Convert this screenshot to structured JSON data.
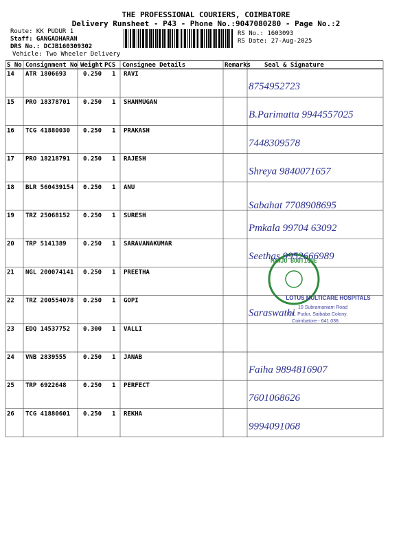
{
  "header": {
    "title": "THE PROFESSIONAL COURIERS, COIMBATORE",
    "subtitle": "Delivery Runsheet - P43 - Phone No.:9047080280 - Page No.:2",
    "route": "Route: KK PUDUR 1",
    "staff": "Staff: GANGADHARAN",
    "drs": "DRS No.: DCJB160309302",
    "vehicle": "Vehicle: Two Wheeler Delivery",
    "rs_no": "RS No.: 1603093",
    "rs_date": "RS Date: 27-Aug-2025"
  },
  "table": {
    "columns": [
      "S No",
      "Consignment No",
      "Weight",
      "PCS",
      "Consignee Details",
      "Remarks",
      "Seal & Signature"
    ],
    "rows": [
      [
        "14",
        "ATR 1806693",
        "0.250",
        "1",
        "RAVI"
      ],
      [
        "15",
        "PRO 18378701",
        "0.250",
        "1",
        "SHANMUGAN"
      ],
      [
        "16",
        "TCG 41880030",
        "0.250",
        "1",
        "PRAKASH"
      ],
      [
        "17",
        "PRO 18218791",
        "0.250",
        "1",
        "RAJESH"
      ],
      [
        "18",
        "BLR 560439154",
        "0.250",
        "1",
        "ANU"
      ],
      [
        "19",
        "TRZ 25068152",
        "0.250",
        "1",
        "SURESH"
      ],
      [
        "20",
        "TRP 5141389",
        "0.250",
        "1",
        "SARAVANAKUMAR"
      ],
      [
        "21",
        "NGL 200074141",
        "0.250",
        "1",
        "PREETHA"
      ],
      [
        "22",
        "TRZ 200554078",
        "0.250",
        "1",
        "GOPI"
      ],
      [
        "23",
        "EDQ 14537752",
        "0.300",
        "1",
        "VALLI"
      ],
      [
        "24",
        "VNB 2839555",
        "0.250",
        "1",
        "JANAB"
      ],
      [
        "25",
        "TRP 6922648",
        "0.250",
        "1",
        "PERFECT"
      ],
      [
        "26",
        "TCG 41880601",
        "0.250",
        "1",
        "REKHA"
      ]
    ]
  },
  "handwriting": [
    "8754952723",
    "B.Parimatta 9944557025",
    "7448309578",
    "Shreya 9840071657",
    "Sabahat 7708908695",
    "Pmkala 99704 63092",
    "Seethas 9952666989",
    null,
    "Saraswathi",
    null,
    "Faiha 9894816907",
    "7601068626",
    "9994091068"
  ],
  "stamp": {
    "boutique": "MANJU BOUTIQUE",
    "hospital": "LOTUS MULTICARE HOSPITALS",
    "address1": "10 Subramaniam Road",
    "address2": "K.K. Pudur, Saibaba Colony,",
    "address3": "Coimbatore - 641 038."
  }
}
